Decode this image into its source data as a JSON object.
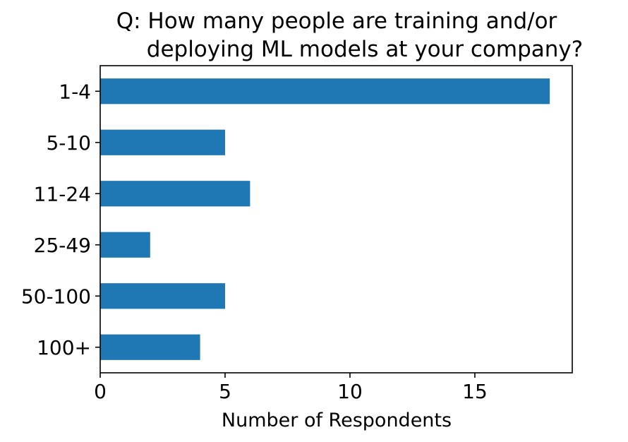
{
  "chart_data": {
    "type": "bar",
    "orientation": "horizontal",
    "title": "Q: How many people are training and/or\n    deploying ML models at your company?",
    "title_lines": [
      "Q: How many people are training and/or",
      "deploying ML models at your company?"
    ],
    "xlabel": "Number of Respondents",
    "ylabel": "",
    "categories": [
      "1-4",
      "5-10",
      "11-24",
      "25-49",
      "50-100",
      "100+"
    ],
    "values": [
      18,
      5,
      6,
      2,
      5,
      4
    ],
    "xlim": [
      0,
      18.9
    ],
    "xticks": [
      0,
      5,
      10,
      15
    ],
    "grid": false,
    "bar_color": "#1f77b4"
  }
}
